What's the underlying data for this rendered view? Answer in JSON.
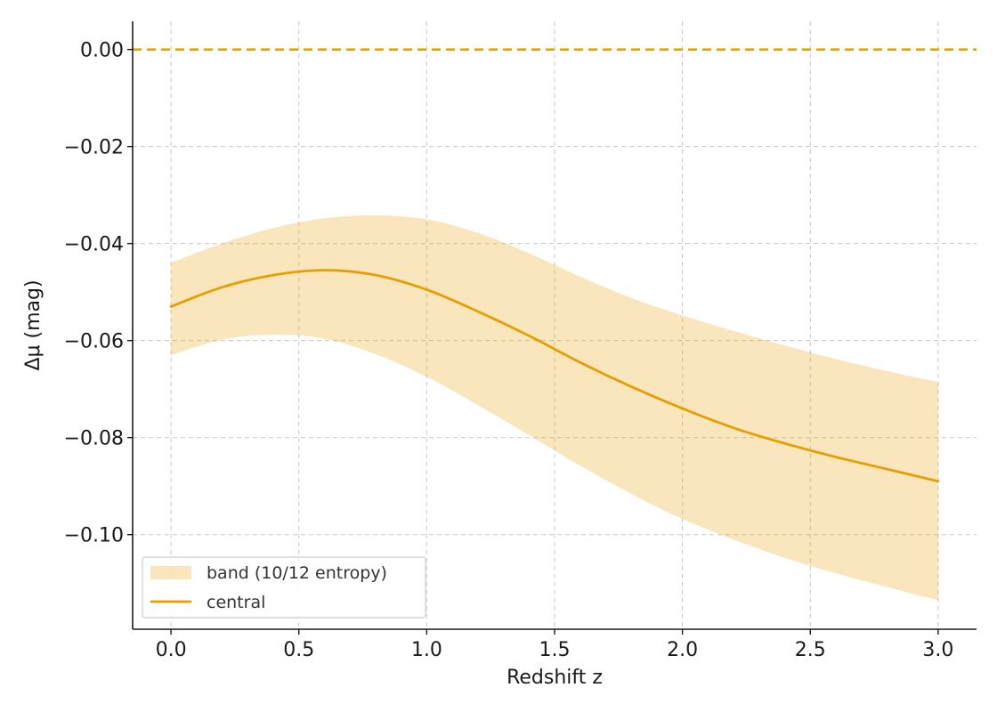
{
  "chart_data": {
    "type": "line",
    "title": "",
    "xlabel": "Redshift z",
    "ylabel": "Δμ (mag)",
    "xlim": [
      -0.15,
      3.15
    ],
    "ylim": [
      -0.1195,
      0.0058
    ],
    "grid": true,
    "legend_position": "bottom-left",
    "xticks": [
      {
        "value": 0.0,
        "label": "0.0"
      },
      {
        "value": 0.5,
        "label": "0.5"
      },
      {
        "value": 1.0,
        "label": "1.0"
      },
      {
        "value": 1.5,
        "label": "1.5"
      },
      {
        "value": 2.0,
        "label": "2.0"
      },
      {
        "value": 2.5,
        "label": "2.5"
      },
      {
        "value": 3.0,
        "label": "3.0"
      }
    ],
    "yticks": [
      {
        "value": 0.0,
        "label": "0.00"
      },
      {
        "value": -0.02,
        "label": "−0.02"
      },
      {
        "value": -0.04,
        "label": "−0.04"
      },
      {
        "value": -0.06,
        "label": "−0.06"
      },
      {
        "value": -0.08,
        "label": "−0.08"
      },
      {
        "value": -0.1,
        "label": "−0.10"
      }
    ],
    "x": [
      0.0,
      0.2,
      0.4,
      0.6,
      0.8,
      1.0,
      1.2,
      1.4,
      1.6,
      1.8,
      2.0,
      2.2,
      2.4,
      2.6,
      2.8,
      3.0
    ],
    "series": [
      {
        "name": "central",
        "kind": "line",
        "color": "#E69F00",
        "y": [
          -0.053,
          -0.049,
          -0.0465,
          -0.0455,
          -0.0465,
          -0.0495,
          -0.054,
          -0.059,
          -0.0645,
          -0.0695,
          -0.074,
          -0.078,
          -0.0812,
          -0.084,
          -0.0865,
          -0.089
        ]
      },
      {
        "name": "band (10/12 entropy)",
        "kind": "band",
        "color": "#E69F00",
        "opacity": 0.26,
        "upper": [
          -0.044,
          -0.04,
          -0.0368,
          -0.0348,
          -0.0342,
          -0.035,
          -0.0378,
          -0.042,
          -0.0468,
          -0.0512,
          -0.0548,
          -0.058,
          -0.061,
          -0.0638,
          -0.0663,
          -0.0685
        ],
        "lower": [
          -0.063,
          -0.0598,
          -0.0588,
          -0.0596,
          -0.0628,
          -0.0675,
          -0.0733,
          -0.0795,
          -0.0858,
          -0.0916,
          -0.0968,
          -0.101,
          -0.1048,
          -0.108,
          -0.1108,
          -0.1135
        ]
      }
    ],
    "reference_line": {
      "y": 0.0,
      "color": "#E69F00",
      "style": "dashed"
    }
  }
}
